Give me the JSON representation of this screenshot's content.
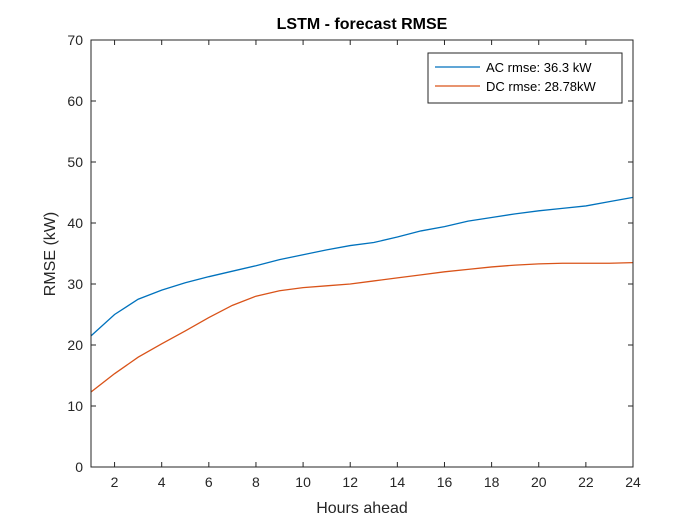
{
  "chart_data": {
    "type": "line",
    "title": "LSTM - forecast RMSE",
    "xlabel": "Hours ahead",
    "ylabel": "RMSE (kW)",
    "xlim": [
      1,
      24
    ],
    "ylim": [
      0,
      70
    ],
    "xticks": [
      2,
      4,
      6,
      8,
      10,
      12,
      14,
      16,
      18,
      20,
      22,
      24
    ],
    "yticks": [
      0,
      10,
      20,
      30,
      40,
      50,
      60,
      70
    ],
    "grid": false,
    "legend_position": "top-right",
    "x": [
      1,
      2,
      3,
      4,
      5,
      6,
      7,
      8,
      9,
      10,
      11,
      12,
      13,
      14,
      15,
      16,
      17,
      18,
      19,
      20,
      21,
      22,
      23,
      24
    ],
    "series": [
      {
        "name": "AC rmse: 36.3 kW",
        "color": "#0072BD",
        "values": [
          21.5,
          25.0,
          27.5,
          29.0,
          30.2,
          31.2,
          32.1,
          33.0,
          34.0,
          34.8,
          35.6,
          36.3,
          36.8,
          37.7,
          38.7,
          39.4,
          40.3,
          40.9,
          41.5,
          42.0,
          42.4,
          42.8,
          43.5,
          44.2
        ]
      },
      {
        "name": "DC rmse: 28.78kW",
        "color": "#D95319",
        "values": [
          12.3,
          15.3,
          18.0,
          20.2,
          22.3,
          24.5,
          26.5,
          28.0,
          28.9,
          29.4,
          29.7,
          30.0,
          30.5,
          31.0,
          31.5,
          32.0,
          32.4,
          32.8,
          33.1,
          33.3,
          33.4,
          33.4,
          33.4,
          33.5
        ]
      }
    ]
  }
}
